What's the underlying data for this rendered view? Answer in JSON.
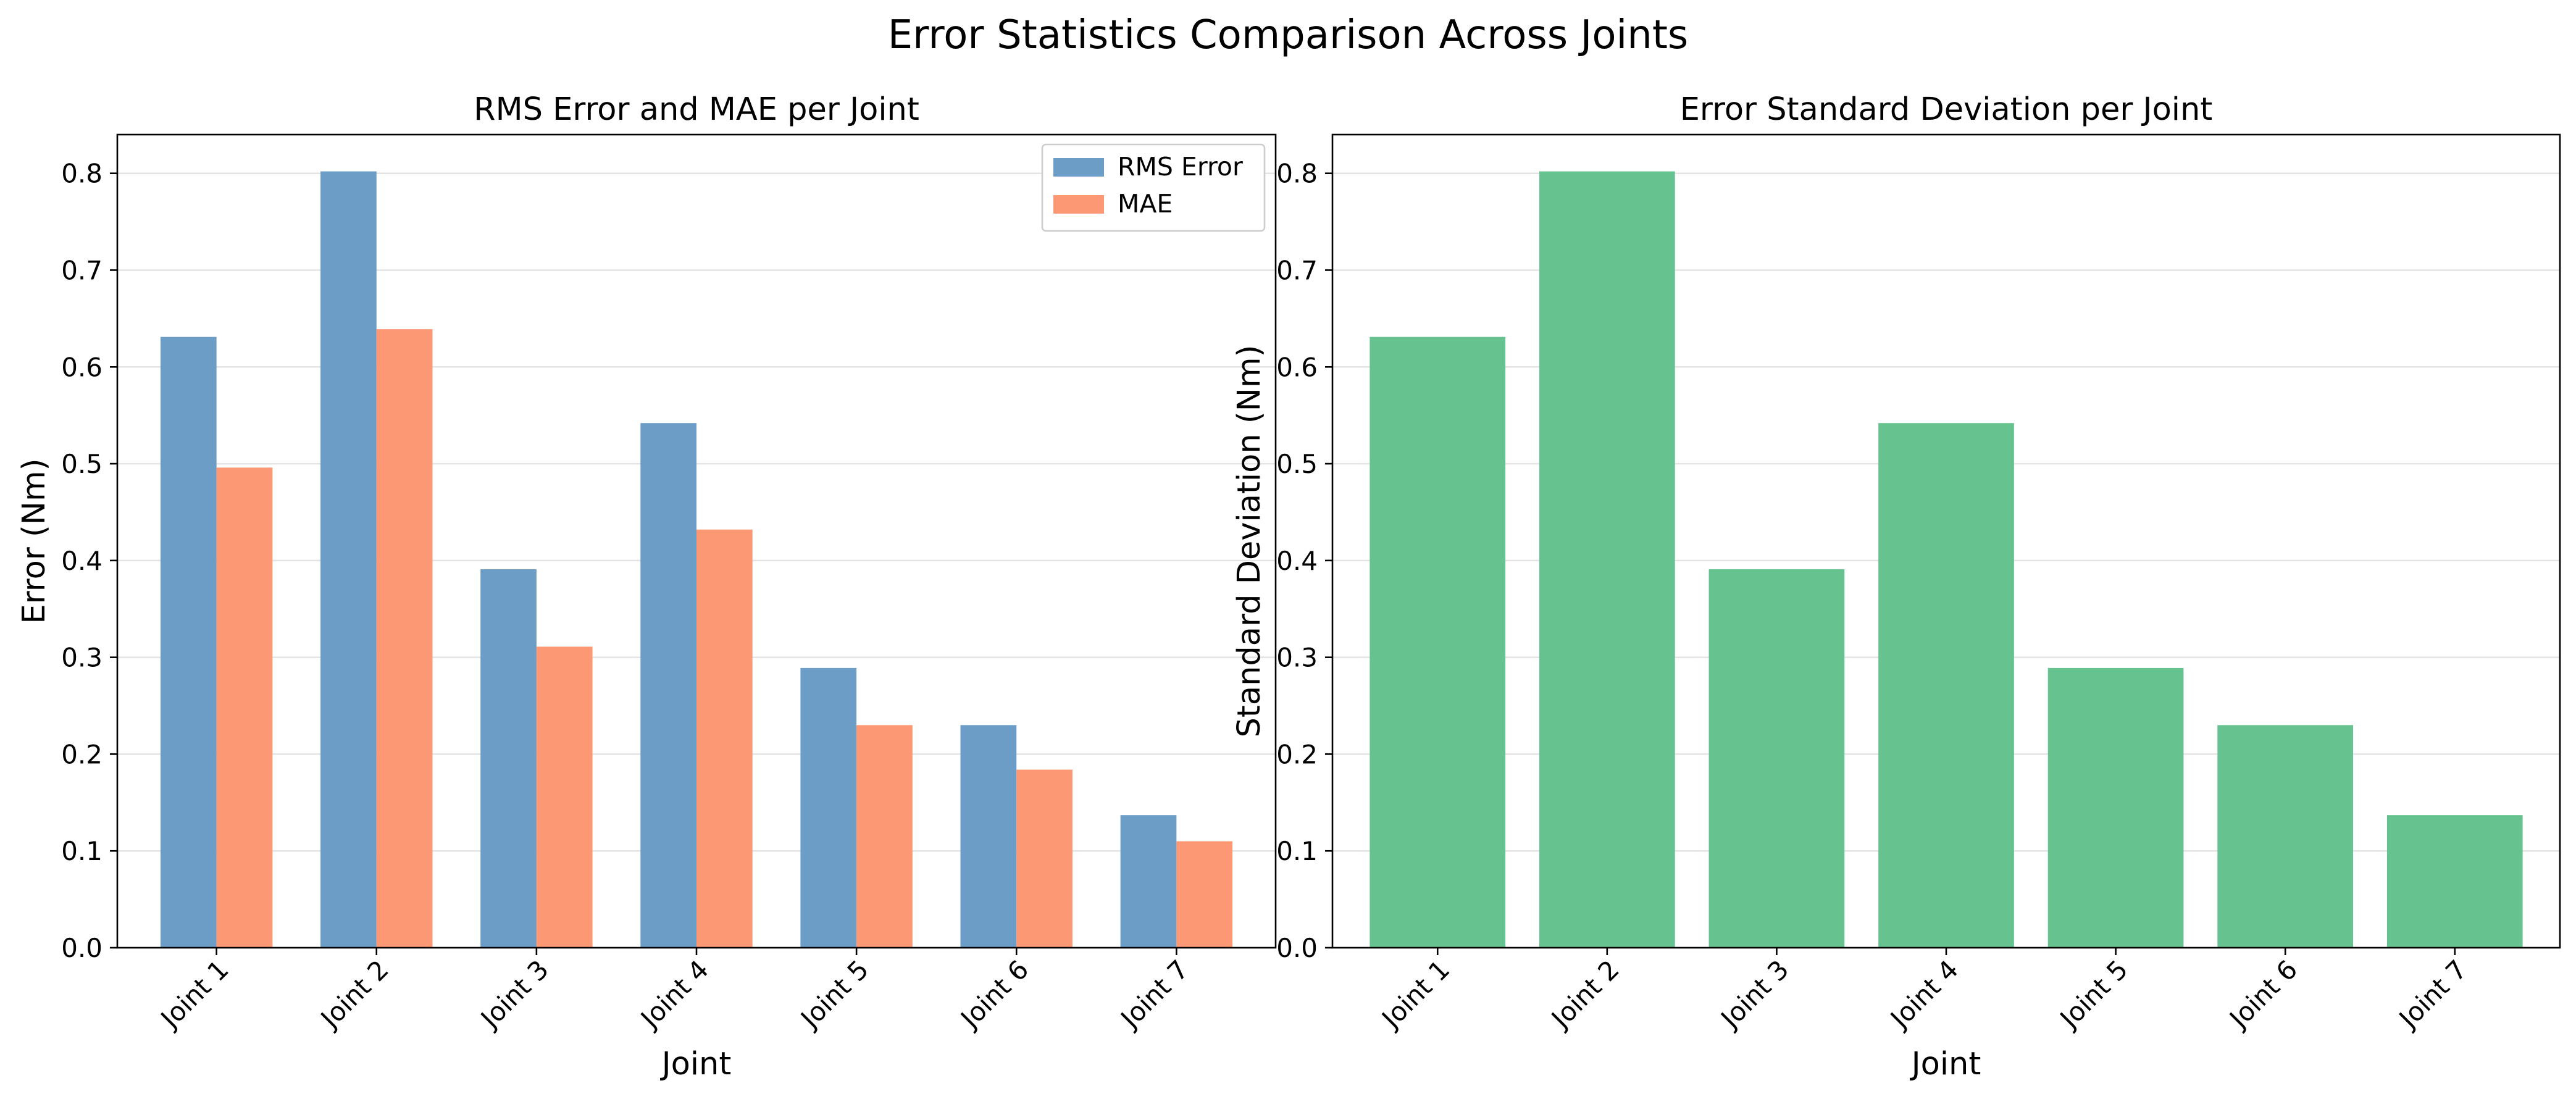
{
  "figure": {
    "title": "Error Statistics Comparison Across Joints"
  },
  "chart_data": [
    {
      "type": "bar",
      "title": "RMS Error and MAE per Joint",
      "xlabel": "Joint",
      "ylabel": "Error (Nm)",
      "categories": [
        "Joint 1",
        "Joint 2",
        "Joint 3",
        "Joint 4",
        "Joint 5",
        "Joint 6",
        "Joint 7"
      ],
      "series": [
        {
          "name": "RMS Error",
          "color": "#6b9dc6",
          "values": [
            0.631,
            0.802,
            0.391,
            0.542,
            0.289,
            0.23,
            0.137
          ]
        },
        {
          "name": "MAE",
          "color": "#fc9974",
          "values": [
            0.496,
            0.639,
            0.311,
            0.432,
            0.23,
            0.184,
            0.11
          ]
        }
      ],
      "ylim": [
        0,
        0.84
      ],
      "yticks": [
        "0.0",
        "0.1",
        "0.2",
        "0.3",
        "0.4",
        "0.5",
        "0.6",
        "0.7",
        "0.8"
      ],
      "grid": true,
      "legend": "top-right"
    },
    {
      "type": "bar",
      "title": "Error Standard Deviation per Joint",
      "xlabel": "Joint",
      "ylabel": "Standard Deviation (Nm)",
      "categories": [
        "Joint 1",
        "Joint 2",
        "Joint 3",
        "Joint 4",
        "Joint 5",
        "Joint 6",
        "Joint 7"
      ],
      "series": [
        {
          "color": "#66c28e",
          "values": [
            0.631,
            0.802,
            0.391,
            0.542,
            0.289,
            0.23,
            0.137
          ]
        }
      ],
      "ylim": [
        0,
        0.84
      ],
      "yticks": [
        "0.0",
        "0.1",
        "0.2",
        "0.3",
        "0.4",
        "0.5",
        "0.6",
        "0.7",
        "0.8"
      ],
      "grid": true
    }
  ]
}
